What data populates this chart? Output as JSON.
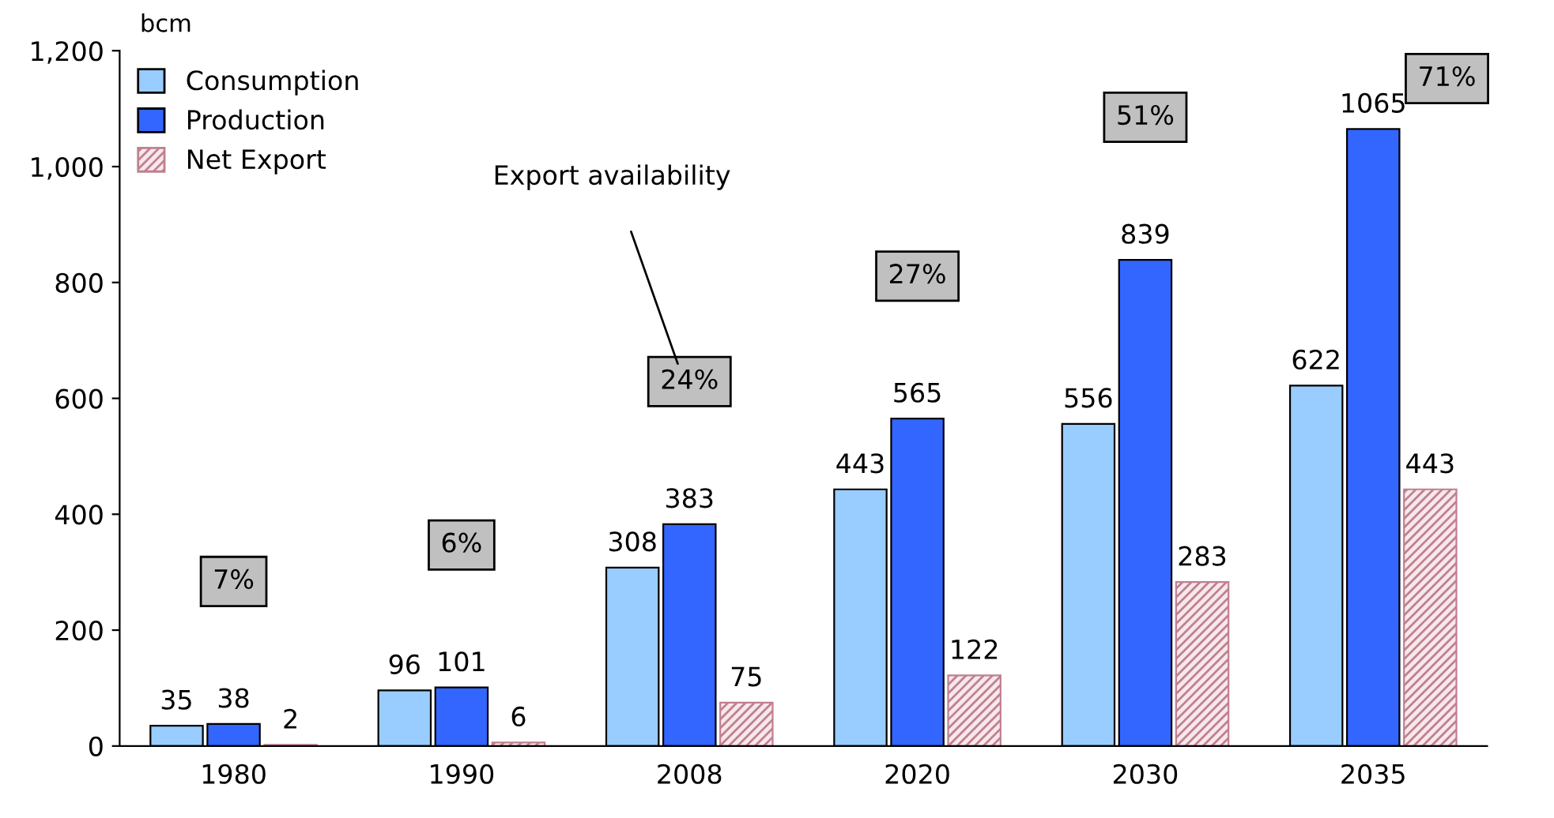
{
  "chart_data": {
    "type": "bar",
    "ylabel": "bcm",
    "categories": [
      "1980",
      "1990",
      "2008",
      "2020",
      "2030",
      "2035"
    ],
    "series": [
      {
        "name": "Consumption",
        "color": "#99ccff",
        "values": [
          35,
          96,
          308,
          443,
          556,
          622
        ]
      },
      {
        "name": "Production",
        "color": "#3366ff",
        "values": [
          38,
          101,
          383,
          565,
          839,
          1065
        ]
      },
      {
        "name": "Net Export",
        "color": "#c08090",
        "values": [
          2,
          6,
          75,
          122,
          283,
          443
        ]
      }
    ],
    "ylim": [
      0,
      1200
    ],
    "yticks": [
      0,
      200,
      400,
      600,
      800,
      {
        "value": 1000,
        "label": "1,000"
      },
      {
        "value": 1200,
        "label": "1,200"
      }
    ],
    "data_labels": true,
    "grid": false,
    "legend": "top left",
    "annotations": [
      "7%",
      "6%",
      "24%",
      "27%",
      "51%",
      "71%",
      "Export availability"
    ]
  }
}
